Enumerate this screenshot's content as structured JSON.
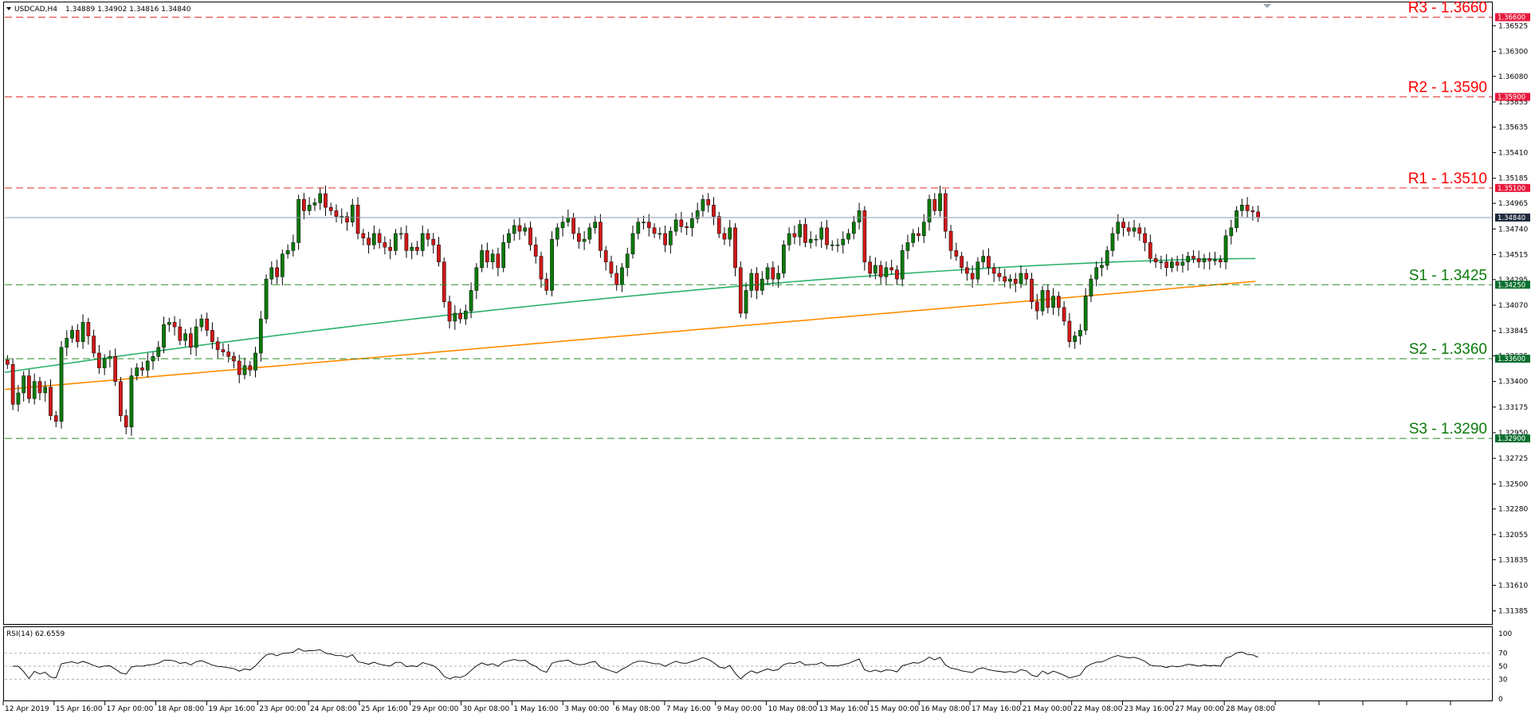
{
  "header": {
    "symbol": "USDCAD,H4",
    "ohlc": "1.34889 1.34902 1.34816 1.34840"
  },
  "rsi": {
    "label": "RSI(14) 62.6559",
    "ticks": [
      "100",
      "70",
      "50",
      "30",
      "0"
    ],
    "levels": [
      70,
      50,
      30
    ]
  },
  "levels": [
    {
      "label": "R3 - 1.3660",
      "price": 1.366,
      "tag": "1.36600",
      "color": "#ff0000",
      "tag_bg": "#e8183c",
      "dash_color": "#e03030"
    },
    {
      "label": "R2 - 1.3590",
      "price": 1.359,
      "tag": "1.35900",
      "color": "#ff0000",
      "tag_bg": "#e8183c",
      "dash_color": "#e03030"
    },
    {
      "label": "R1 - 1.3510",
      "price": 1.351,
      "tag": "1.35100",
      "color": "#ff0000",
      "tag_bg": "#e8183c",
      "dash_color": "#e03030"
    },
    {
      "label": "S1 -  1.3425",
      "price": 1.3425,
      "tag": "1.34250",
      "color": "#0a7a0a",
      "tag_bg": "#0a6e2e",
      "dash_color": "#2a8a2a"
    },
    {
      "label": "S2 - 1.3360",
      "price": 1.336,
      "tag": "1.33600",
      "color": "#0a7a0a",
      "tag_bg": "#0a6e2e",
      "dash_color": "#2a8a2a"
    },
    {
      "label": "S3 - 1.3290",
      "price": 1.329,
      "tag": "1.32900",
      "color": "#0a7a0a",
      "tag_bg": "#0a6e2e",
      "dash_color": "#2a8a2a"
    }
  ],
  "current_price": {
    "price": 1.3484,
    "tag": "1.34840",
    "tag_bg": "#1e2c3c"
  },
  "colors": {
    "bull": "#0a7a0a",
    "bear": "#d01818",
    "ma_fast": "#2bb36b",
    "ma_slow": "#ff8c00"
  },
  "chart_data": {
    "type": "candlestick",
    "ylim": [
      1.3127,
      1.3673
    ],
    "y_ticks": [
      "1.36525",
      "1.36300",
      "1.36080",
      "1.35855",
      "1.35635",
      "1.35410",
      "1.35185",
      "1.34965",
      "1.34740",
      "1.34515",
      "1.34295",
      "1.34070",
      "1.33845",
      "1.33625",
      "1.33400",
      "1.33175",
      "1.32950",
      "1.32725",
      "1.32500",
      "1.32280",
      "1.32055",
      "1.31835",
      "1.31610",
      "1.31385"
    ],
    "x_labels": [
      "12 Apr 2019",
      "15 Apr 16:00",
      "17 Apr 00:00",
      "18 Apr 08:00",
      "19 Apr 16:00",
      "23 Apr 00:00",
      "24 Apr 08:00",
      "25 Apr 16:00",
      "29 Apr 00:00",
      "30 Apr 08:00",
      "1 May 16:00",
      "3 May 00:00",
      "6 May 08:00",
      "7 May 16:00",
      "9 May 00:00",
      "10 May 08:00",
      "13 May 16:00",
      "15 May 00:00",
      "16 May 08:00",
      "17 May 16:00",
      "21 May 00:00",
      "22 May 08:00",
      "23 May 16:00",
      "27 May 00:00",
      "28 May 08:00"
    ],
    "closes": [
      1.3355,
      1.332,
      1.333,
      1.3345,
      1.3325,
      1.334,
      1.333,
      1.3335,
      1.331,
      1.3305,
      1.337,
      1.3378,
      1.3385,
      1.3375,
      1.3392,
      1.338,
      1.3365,
      1.3352,
      1.336,
      1.3362,
      1.334,
      1.331,
      1.33,
      1.3345,
      1.3352,
      1.335,
      1.3358,
      1.3362,
      1.337,
      1.339,
      1.3392,
      1.3388,
      1.3376,
      1.3382,
      1.337,
      1.3388,
      1.3395,
      1.3385,
      1.3375,
      1.3368,
      1.3366,
      1.3362,
      1.3358,
      1.3346,
      1.3354,
      1.335,
      1.3365,
      1.3395,
      1.343,
      1.344,
      1.3432,
      1.3452,
      1.3455,
      1.3462,
      1.35,
      1.349,
      1.3495,
      1.3497,
      1.3505,
      1.3493,
      1.349,
      1.3485,
      1.3485,
      1.348,
      1.3495,
      1.347,
      1.3466,
      1.346,
      1.347,
      1.3462,
      1.3458,
      1.3455,
      1.347,
      1.347,
      1.3455,
      1.3458,
      1.3455,
      1.347,
      1.3465,
      1.346,
      1.3445,
      1.341,
      1.3393,
      1.34,
      1.3395,
      1.3402,
      1.342,
      1.344,
      1.3455,
      1.3445,
      1.3452,
      1.344,
      1.3462,
      1.347,
      1.3477,
      1.3472,
      1.3475,
      1.346,
      1.345,
      1.343,
      1.342,
      1.3465,
      1.3475,
      1.348,
      1.3484,
      1.347,
      1.3463,
      1.3465,
      1.3475,
      1.348,
      1.3455,
      1.3445,
      1.3435,
      1.3425,
      1.344,
      1.3452,
      1.347,
      1.348,
      1.348,
      1.3475,
      1.347,
      1.347,
      1.346,
      1.3472,
      1.3482,
      1.3476,
      1.3475,
      1.3483,
      1.349,
      1.35,
      1.3495,
      1.3485,
      1.347,
      1.3465,
      1.3475,
      1.344,
      1.34,
      1.342,
      1.3435,
      1.342,
      1.343,
      1.344,
      1.343,
      1.3435,
      1.346,
      1.347,
      1.3467,
      1.3478,
      1.3462,
      1.3465,
      1.3465,
      1.3475,
      1.346,
      1.346,
      1.346,
      1.3465,
      1.347,
      1.348,
      1.349,
      1.3445,
      1.3435,
      1.3442,
      1.3432,
      1.344,
      1.3438,
      1.343,
      1.3455,
      1.3462,
      1.347,
      1.3468,
      1.348,
      1.35,
      1.349,
      1.3505,
      1.3472,
      1.3455,
      1.345,
      1.344,
      1.3435,
      1.343,
      1.3445,
      1.345,
      1.344,
      1.3435,
      1.3432,
      1.3428,
      1.343,
      1.3426,
      1.3435,
      1.343,
      1.341,
      1.3402,
      1.342,
      1.3405,
      1.3415,
      1.3405,
      1.3393,
      1.3375,
      1.338,
      1.3385,
      1.3415,
      1.343,
      1.344,
      1.3442,
      1.3455,
      1.347,
      1.348,
      1.3475,
      1.3472,
      1.3475,
      1.347,
      1.3462,
      1.3448,
      1.3445,
      1.3445,
      1.344,
      1.3445,
      1.3442,
      1.3445,
      1.345,
      1.3448,
      1.3445,
      1.3448,
      1.3446,
      1.3447,
      1.3445,
      1.3468,
      1.3475,
      1.349,
      1.3495,
      1.349,
      1.3489,
      1.3484
    ],
    "ma_fast": {
      "start": 1.3348,
      "end": 1.3448,
      "desc": "moving average"
    },
    "ma_slow": {
      "start": 1.3333,
      "end": 1.3428,
      "desc": "moving average"
    }
  }
}
